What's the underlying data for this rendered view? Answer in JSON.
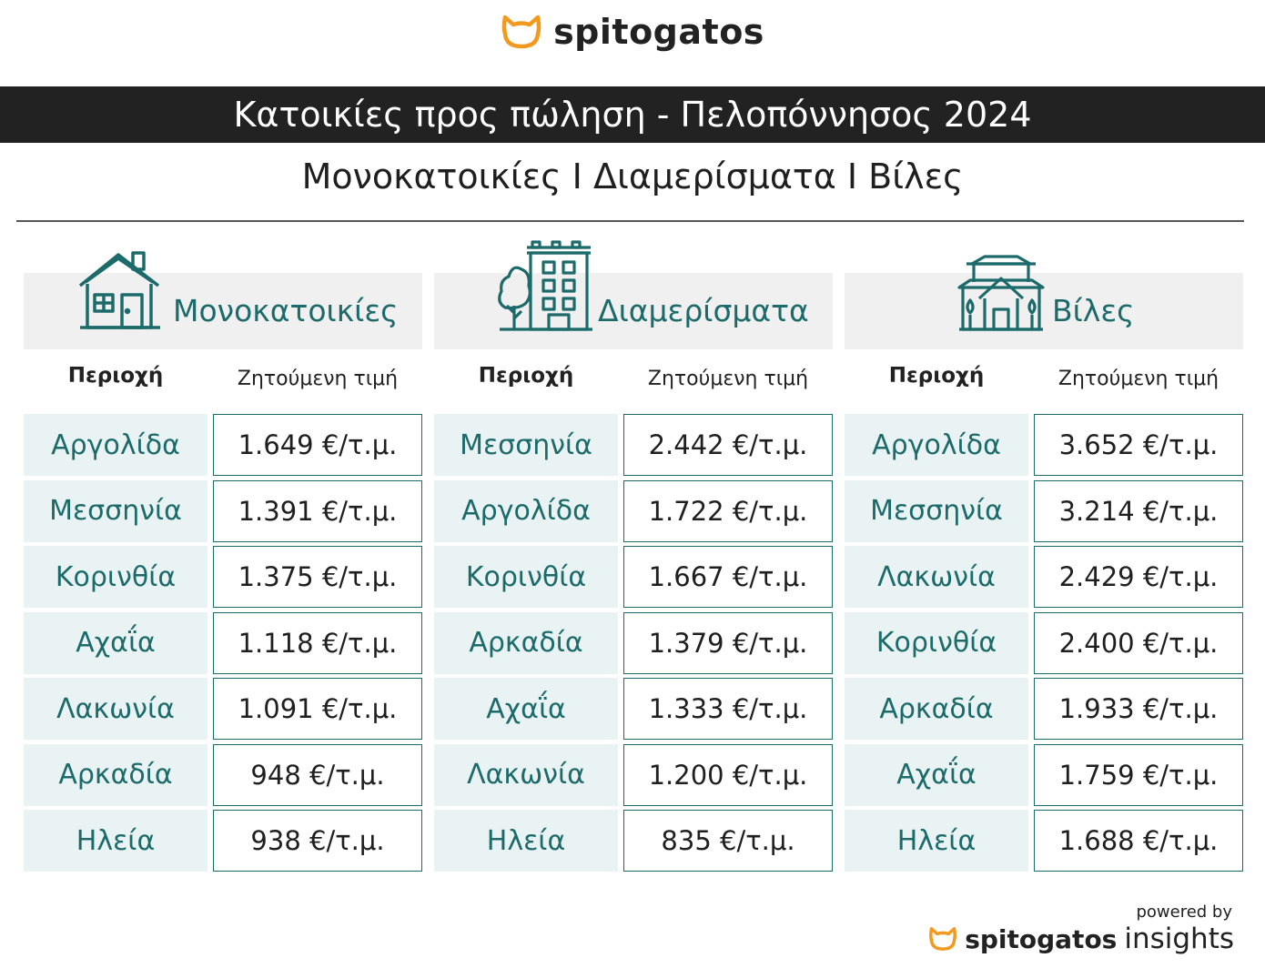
{
  "brand": {
    "wordmark": "spitogatos",
    "footer_prefix": "powered by",
    "footer_wordmark": "spitogatos",
    "footer_suffix": "insights"
  },
  "title": "Κατοικίες προς πώληση - Πελοπόννησος 2024",
  "subtitle": "Μονοκατοικίες I Διαμερίσματα I Βίλες",
  "colors": {
    "accent": "#1d6a6b",
    "orange": "#f39a1e",
    "dark": "#222222",
    "row_bg": "#e9f3f3",
    "head_bg": "#f0f0f0"
  },
  "icons": [
    "house-icon",
    "apartment-building-icon",
    "villa-icon",
    "cat-logo-icon"
  ],
  "chart_data": {
    "type": "table",
    "column_headers": [
      "Περιοχή",
      "Ζητούμενη τιμή"
    ],
    "unit": "€/τ.μ.",
    "tables": [
      {
        "category": "Μονοκατοικίες",
        "rows": [
          {
            "region": "Αργολίδα",
            "price": "1.649 €/τ.μ."
          },
          {
            "region": "Μεσσηνία",
            "price": "1.391 €/τ.μ."
          },
          {
            "region": "Κορινθία",
            "price": "1.375 €/τ.μ."
          },
          {
            "region": "Αχαΐα",
            "price": "1.118 €/τ.μ."
          },
          {
            "region": "Λακωνία",
            "price": "1.091 €/τ.μ."
          },
          {
            "region": "Αρκαδία",
            "price": "948 €/τ.μ."
          },
          {
            "region": "Ηλεία",
            "price": "938 €/τ.μ."
          }
        ]
      },
      {
        "category": "Διαμερίσματα",
        "rows": [
          {
            "region": "Μεσσηνία",
            "price": "2.442 €/τ.μ."
          },
          {
            "region": "Αργολίδα",
            "price": "1.722 €/τ.μ."
          },
          {
            "region": "Κορινθία",
            "price": "1.667 €/τ.μ."
          },
          {
            "region": "Αρκαδία",
            "price": "1.379 €/τ.μ."
          },
          {
            "region": "Αχαΐα",
            "price": "1.333 €/τ.μ."
          },
          {
            "region": "Λακωνία",
            "price": "1.200 €/τ.μ."
          },
          {
            "region": "Ηλεία",
            "price": "835 €/τ.μ."
          }
        ]
      },
      {
        "category": "Βίλες",
        "rows": [
          {
            "region": "Αργολίδα",
            "price": "3.652 €/τ.μ."
          },
          {
            "region": "Μεσσηνία",
            "price": "3.214 €/τ.μ."
          },
          {
            "region": "Λακωνία",
            "price": "2.429 €/τ.μ."
          },
          {
            "region": "Κορινθία",
            "price": "2.400 €/τ.μ."
          },
          {
            "region": "Αρκαδία",
            "price": "1.933 €/τ.μ."
          },
          {
            "region": "Αχαΐα",
            "price": "1.759 €/τ.μ."
          },
          {
            "region": "Ηλεία",
            "price": "1.688 €/τ.μ."
          }
        ]
      }
    ]
  }
}
